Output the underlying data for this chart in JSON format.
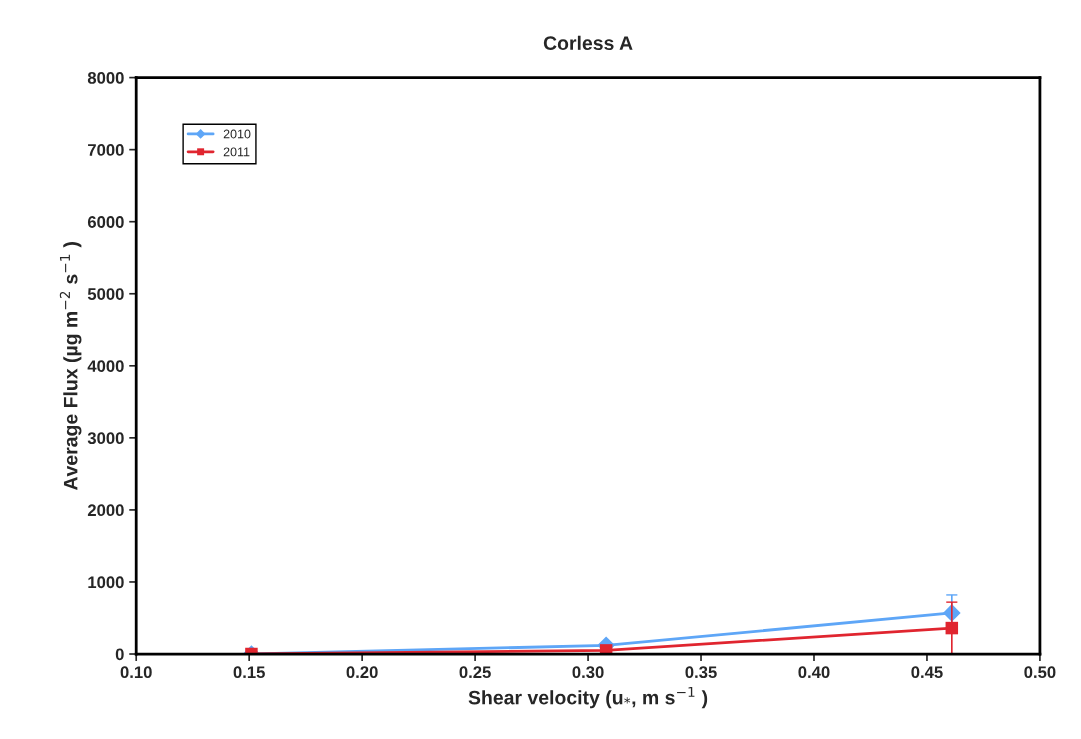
{
  "chart_data": {
    "type": "line",
    "title": "Corless A",
    "xlabel": "Shear velocity (u$_{*}$, m s$^{−1}$ )",
    "ylabel": "Average Flux (µg m$^{−2}$ s$^{−1}$ )",
    "x": [
      0.151,
      0.308,
      0.461
    ],
    "series": [
      {
        "name": "2010",
        "color": "#5ea6f7",
        "marker": "diamond",
        "values": [
          0,
          120,
          570
        ],
        "errors": [
          null,
          null,
          250
        ]
      },
      {
        "name": "2011",
        "color": "#e0252f",
        "marker": "square",
        "values": [
          0,
          50,
          360
        ],
        "errors": [
          null,
          null,
          360
        ]
      }
    ],
    "xlim": [
      0.1,
      0.5
    ],
    "xticks": [
      {
        "value": 0.1,
        "label": "0.10"
      },
      {
        "value": 0.15,
        "label": "0.15"
      },
      {
        "value": 0.2,
        "label": "0.20"
      },
      {
        "value": 0.25,
        "label": "0.25"
      },
      {
        "value": 0.3,
        "label": "0.30"
      },
      {
        "value": 0.35,
        "label": "0.35"
      },
      {
        "value": 0.4,
        "label": "0.40"
      },
      {
        "value": 0.45,
        "label": "0.45"
      },
      {
        "value": 0.5,
        "label": "0.50"
      }
    ],
    "ylim": [
      0,
      8000
    ],
    "yticks": [
      0,
      1000,
      2000,
      3000,
      4000,
      5000,
      6000,
      7000,
      8000
    ],
    "grid": false,
    "legend": "top left"
  }
}
